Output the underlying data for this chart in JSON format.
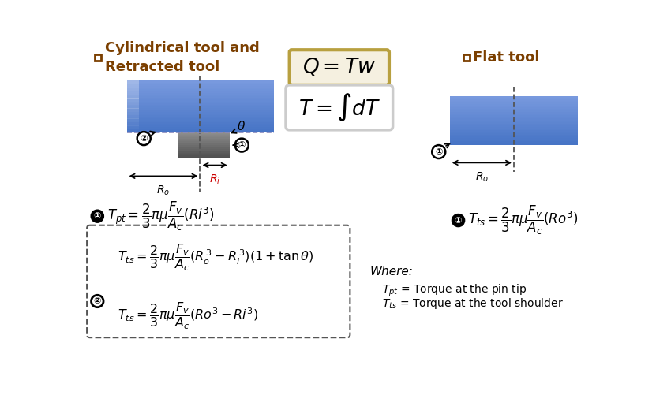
{
  "bg_color": "#ffffff",
  "title_left": "Cylindrical tool and\nRetracted tool",
  "title_right": "Flat tool",
  "title_color": "#7b3f00",
  "title_fontsize": 13,
  "eq_box1_color": "#b8a040",
  "blue_color": "#4472c4",
  "blue_dark": "#2e5fa3",
  "gray_pin": "#6e6e6e",
  "dashed_color": "#555555",
  "formula_color": "#000000"
}
